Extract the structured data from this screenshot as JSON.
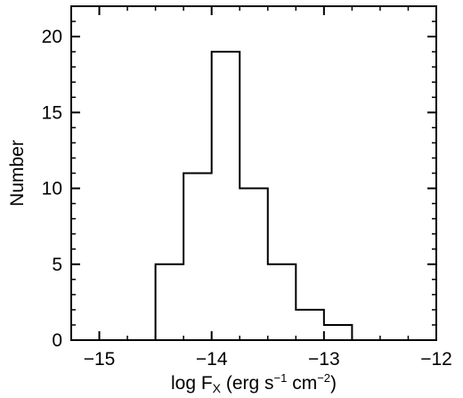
{
  "chart_data": {
    "type": "histogram",
    "title": "",
    "xlabel": {
      "prefix": "log F",
      "subscript": "X",
      "units_open": " (erg s",
      "sup1": "−1",
      "units_mid": " cm",
      "sup2": "−2",
      "units_close": ")"
    },
    "ylabel": "Number",
    "xlim": [
      -15.25,
      -12
    ],
    "ylim": [
      0,
      22
    ],
    "x_ticks": [
      -15,
      -14,
      -13,
      -12
    ],
    "x_tick_labels": [
      "−15",
      "−14",
      "−13",
      "−12"
    ],
    "y_ticks": [
      0,
      5,
      10,
      15,
      20
    ],
    "y_tick_labels": [
      "0",
      "5",
      "10",
      "15",
      "20"
    ],
    "bin_edges": [
      -14.75,
      -14.5,
      -14.25,
      -14.0,
      -13.75,
      -13.5,
      -13.25,
      -13.0,
      -12.75
    ],
    "counts": [
      0,
      5,
      11,
      19,
      10,
      5,
      2,
      1
    ],
    "grid": false
  }
}
